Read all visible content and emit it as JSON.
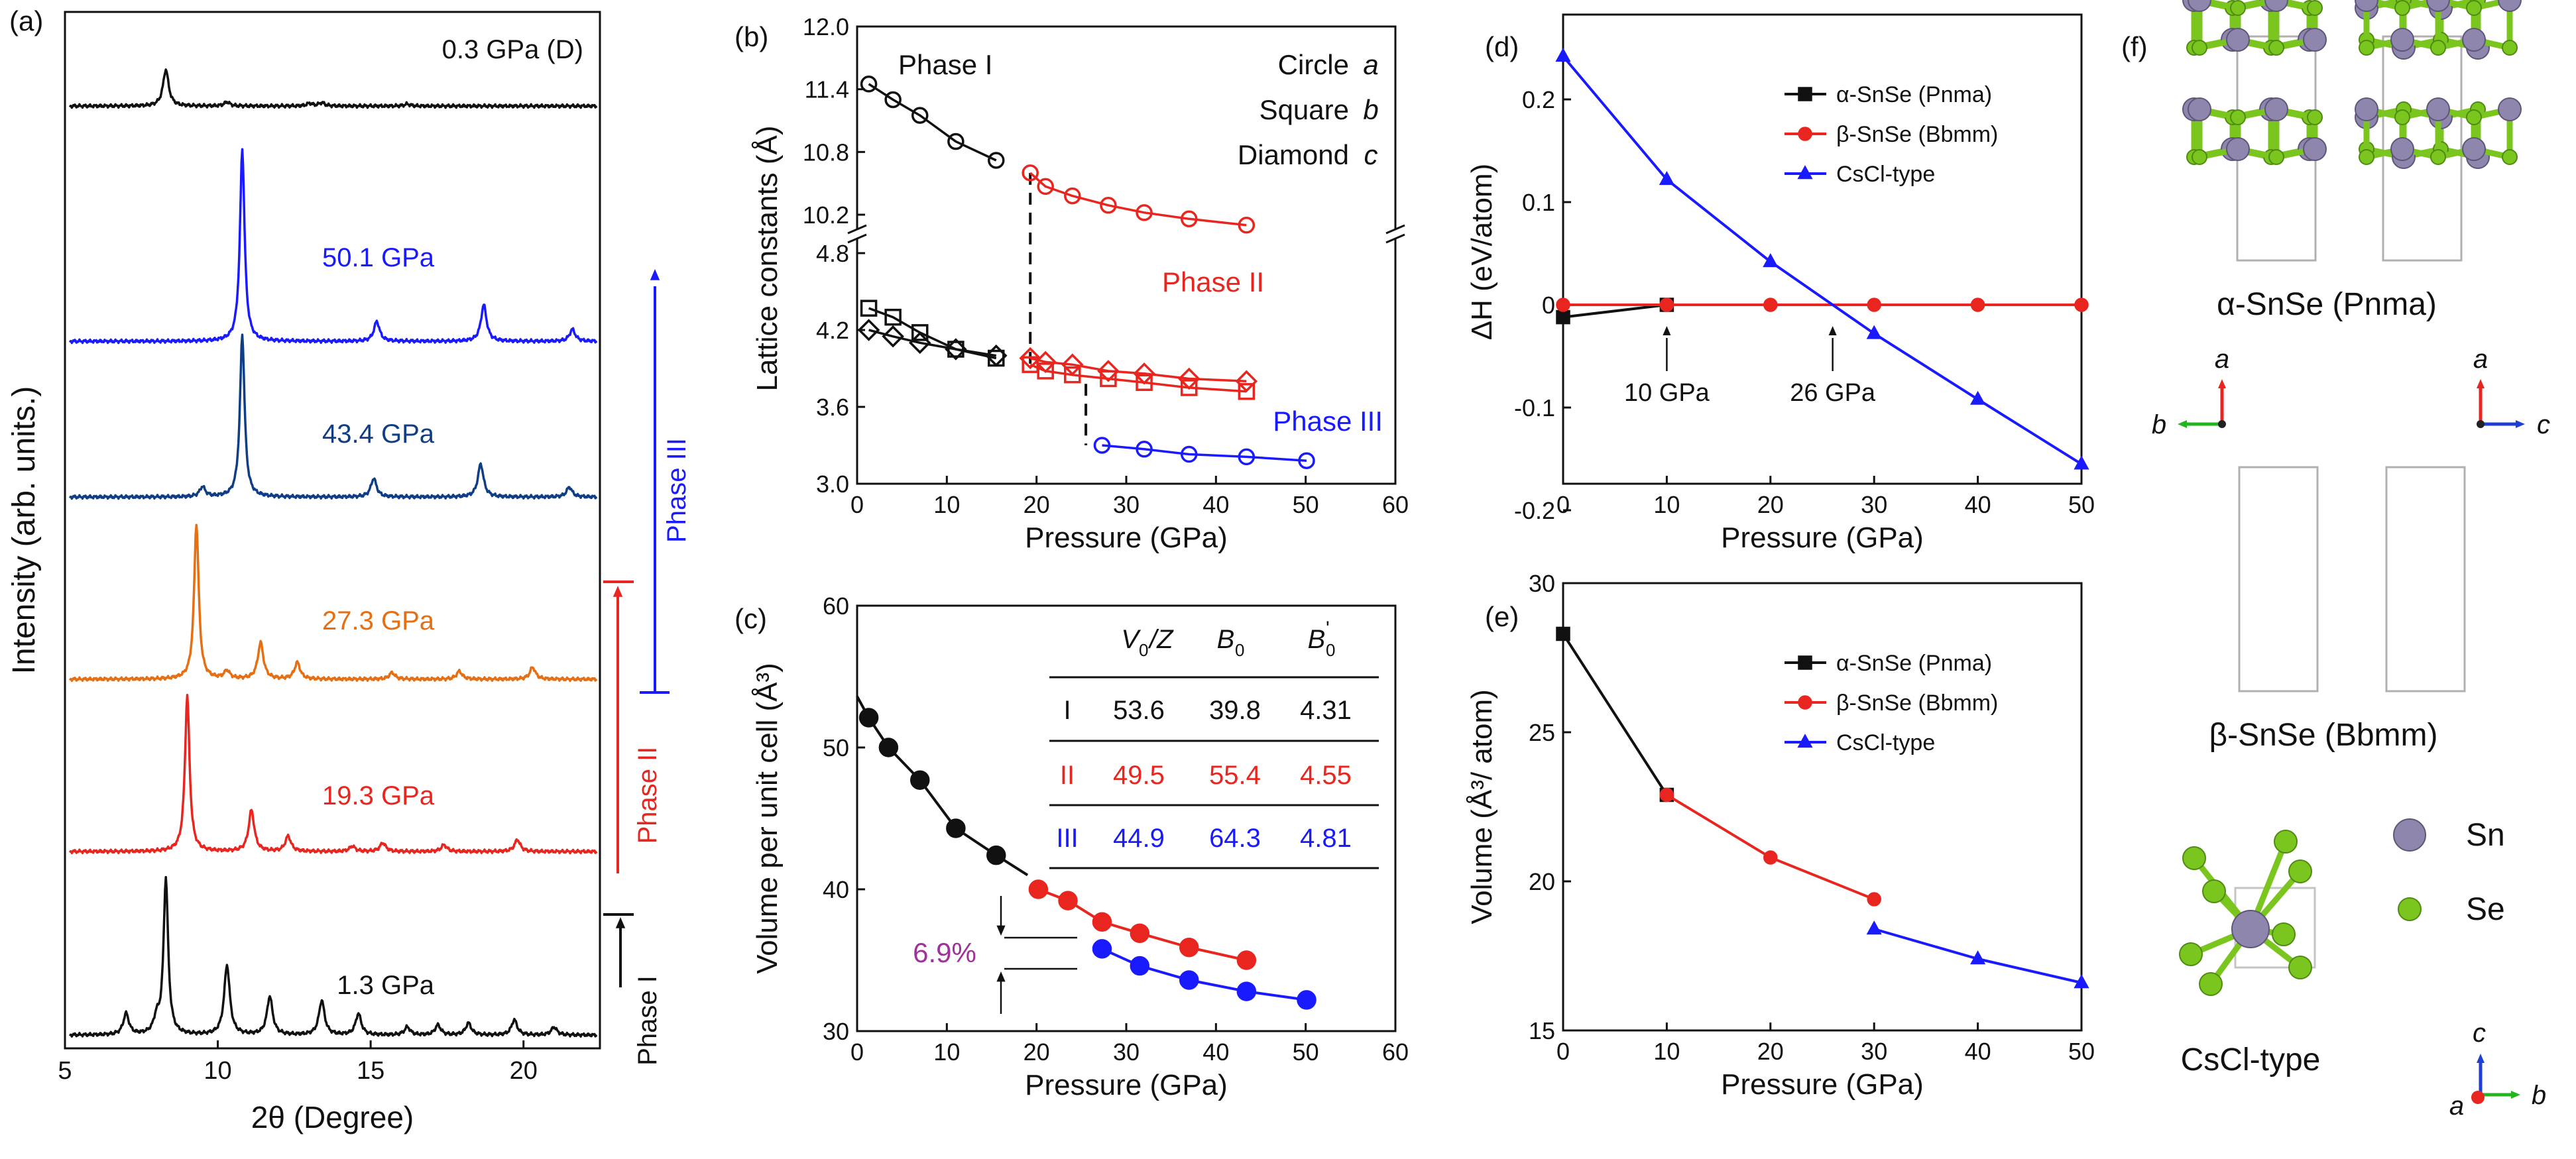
{
  "colors": {
    "black": "#111111",
    "red": "#e8261f",
    "blue": "#1a1aff",
    "navy": "#0f3e86",
    "orange": "#e56f12",
    "purple": "#a0309a",
    "sn": "#8e86ad",
    "se": "#7bc51f",
    "axis_a": "#e8261f",
    "axis_b": "#24b41f",
    "axis_c": "#1f3fd4"
  },
  "chart_data": [
    {
      "id": "a",
      "label": "(a)",
      "type": "line",
      "xlabel": "2θ (Degree)",
      "ylabel": "Intensity (arb. units.)",
      "xlim": [
        5,
        22.5
      ],
      "xticks": [
        5,
        10,
        15,
        20
      ],
      "series": [
        {
          "name": "0.3 GPa (D)",
          "color": "black",
          "peaks": [
            [
              8.3,
              55
            ],
            [
              10.3,
              6
            ],
            [
              13.0,
              4
            ],
            [
              13.4,
              5
            ],
            [
              16.2,
              3
            ]
          ]
        },
        {
          "name": "50.1 GPa",
          "color": "blue",
          "peaks": [
            [
              10.8,
              290
            ],
            [
              15.2,
              30
            ],
            [
              18.7,
              55
            ],
            [
              21.6,
              18
            ]
          ]
        },
        {
          "name": "43.4 GPa",
          "color": "navy",
          "peaks": [
            [
              9.5,
              15
            ],
            [
              10.8,
              245
            ],
            [
              15.1,
              28
            ],
            [
              18.6,
              50
            ],
            [
              21.5,
              15
            ]
          ]
        },
        {
          "name": "27.3 GPa",
          "color": "orange",
          "peaks": [
            [
              9.3,
              235
            ],
            [
              10.3,
              12
            ],
            [
              11.4,
              55
            ],
            [
              12.6,
              25
            ],
            [
              15.7,
              10
            ],
            [
              17.9,
              12
            ],
            [
              20.3,
              18
            ]
          ]
        },
        {
          "name": "19.3 GPa",
          "color": "red",
          "peaks": [
            [
              9.0,
              235
            ],
            [
              11.1,
              62
            ],
            [
              12.3,
              23
            ],
            [
              14.4,
              8
            ],
            [
              15.4,
              13
            ],
            [
              17.4,
              10
            ],
            [
              19.8,
              18
            ]
          ]
        },
        {
          "name": "1.3 GPa",
          "color": "black",
          "peaks": [
            [
              7.0,
              32
            ],
            [
              8.0,
              22
            ],
            [
              8.3,
              235
            ],
            [
              10.3,
              105
            ],
            [
              11.7,
              58
            ],
            [
              13.4,
              52
            ],
            [
              14.6,
              32
            ],
            [
              16.2,
              12
            ],
            [
              17.2,
              15
            ],
            [
              18.2,
              18
            ],
            [
              19.7,
              23
            ],
            [
              21.0,
              12
            ]
          ]
        }
      ],
      "phases": [
        {
          "name": "Phase I",
          "color": "black",
          "p_from": 0,
          "p_to": 1.3
        },
        {
          "name": "Phase II",
          "color": "red",
          "p_from": 1.3,
          "p_to": 43.4
        },
        {
          "name": "Phase III",
          "color": "blue",
          "p_from": 27.3,
          "p_to": 50.1
        }
      ]
    },
    {
      "id": "b",
      "label": "(b)",
      "type": "scatter",
      "xlabel": "Pressure (GPa)",
      "ylabel": "Lattice constants (Å)",
      "xlim": [
        0,
        60
      ],
      "xticks": [
        0,
        10,
        20,
        30,
        40,
        50,
        60
      ],
      "yticks_top": [
        "10.2",
        "10.8",
        "11.4",
        "12.0"
      ],
      "yticks_bottom": [
        "3.0",
        "3.6",
        "4.2",
        "4.8"
      ],
      "legend": [
        {
          "text": "Circle",
          "var": "a"
        },
        {
          "text": "Square",
          "var": "b"
        },
        {
          "text": "Diamond",
          "var": "c"
        }
      ],
      "annotations": [
        "Phase I",
        "Phase II",
        "Phase III"
      ],
      "series": [
        {
          "name": "a Phase I",
          "color": "black",
          "marker": "circle",
          "x": [
            1.3,
            4,
            7,
            11,
            15.5
          ],
          "y": [
            11.45,
            11.3,
            11.15,
            10.9,
            10.72
          ]
        },
        {
          "name": "a Phase II",
          "color": "red",
          "marker": "circle",
          "x": [
            19.3,
            21,
            24,
            28,
            32,
            37,
            43.4
          ],
          "y": [
            10.6,
            10.47,
            10.38,
            10.29,
            10.22,
            10.16,
            10.1
          ]
        },
        {
          "name": "b Phase I",
          "color": "black",
          "marker": "square",
          "x": [
            1.3,
            4,
            7,
            11,
            15.5
          ],
          "y": [
            4.37,
            4.3,
            4.18,
            4.05,
            3.98
          ]
        },
        {
          "name": "b Phase II",
          "color": "red",
          "marker": "square",
          "x": [
            19.3,
            21,
            24,
            28,
            32,
            37,
            43.4
          ],
          "y": [
            3.93,
            3.88,
            3.85,
            3.82,
            3.79,
            3.75,
            3.72
          ]
        },
        {
          "name": "c Phase I",
          "color": "black",
          "marker": "diamond",
          "x": [
            1.3,
            4,
            7,
            11,
            15.5
          ],
          "y": [
            4.2,
            4.15,
            4.1,
            4.05,
            4.0
          ]
        },
        {
          "name": "c Phase II",
          "color": "red",
          "marker": "diamond",
          "x": [
            19.3,
            21,
            24,
            28,
            32,
            37,
            43.4
          ],
          "y": [
            3.98,
            3.95,
            3.93,
            3.88,
            3.86,
            3.82,
            3.8
          ]
        },
        {
          "name": "Phase III",
          "color": "blue",
          "marker": "circle",
          "x": [
            27.3,
            32,
            37,
            43.4,
            50.1
          ],
          "y": [
            3.3,
            3.27,
            3.23,
            3.21,
            3.18
          ]
        }
      ]
    },
    {
      "id": "c",
      "label": "(c)",
      "type": "scatter",
      "xlabel": "Pressure (GPa)",
      "ylabel": "Volume per unit cell (Å³)",
      "xlim": [
        0,
        60
      ],
      "ylim": [
        30,
        60
      ],
      "xticks": [
        0,
        10,
        20,
        30,
        40,
        50,
        60
      ],
      "yticks": [
        30,
        40,
        50,
        60
      ],
      "annotation": "6.9%",
      "table": {
        "headers": [
          "V0/Z",
          "B0",
          "B0'"
        ],
        "rows": [
          {
            "phase": "I",
            "v": "53.6",
            "b": "39.8",
            "bp": "4.31",
            "color": "black"
          },
          {
            "phase": "II",
            "v": "49.5",
            "b": "55.4",
            "bp": "4.55",
            "color": "red"
          },
          {
            "phase": "III",
            "v": "44.9",
            "b": "64.3",
            "bp": "4.81",
            "color": "blue"
          }
        ]
      },
      "series": [
        {
          "name": "Phase I",
          "color": "black",
          "x": [
            1.3,
            3.5,
            7,
            11,
            15.5
          ],
          "y": [
            52.1,
            50.0,
            47.7,
            44.3,
            42.4
          ]
        },
        {
          "name": "Phase II",
          "color": "red",
          "x": [
            20.2,
            23.5,
            27.3,
            31.5,
            37,
            43.4
          ],
          "y": [
            40.0,
            39.2,
            37.7,
            36.9,
            35.9,
            35.0
          ]
        },
        {
          "name": "Phase III",
          "color": "blue",
          "x": [
            27.3,
            31.5,
            37,
            43.4,
            50.1
          ],
          "y": [
            35.8,
            34.6,
            33.6,
            32.8,
            32.2
          ]
        }
      ]
    },
    {
      "id": "d",
      "label": "(d)",
      "type": "line",
      "xlabel": "Pressure (GPa)",
      "ylabel": "ΔH (eV/atom)",
      "xlim": [
        0,
        50
      ],
      "ylim": [
        -0.2,
        0.25
      ],
      "xticks": [
        0,
        10,
        20,
        30,
        40,
        50
      ],
      "yticks": [
        -0.2,
        -0.1,
        0,
        0.1,
        0.2
      ],
      "annotations": [
        "10 GPa",
        "26 GPa"
      ],
      "series": [
        {
          "name": "α-SnSe (Pnma)",
          "color": "black",
          "marker": "square",
          "x": [
            0,
            10
          ],
          "y": [
            -0.012,
            0
          ]
        },
        {
          "name": "β-SnSe (Bbmm)",
          "color": "red",
          "marker": "circle",
          "x": [
            0,
            10,
            20,
            30,
            40,
            50
          ],
          "y": [
            0,
            0,
            0,
            0,
            0,
            0
          ]
        },
        {
          "name": "CsCl-type",
          "color": "blue",
          "marker": "triangle",
          "x": [
            0,
            10,
            20,
            30,
            40,
            50
          ],
          "y": [
            0.242,
            0.122,
            0.042,
            -0.028,
            -0.092,
            -0.155
          ]
        }
      ]
    },
    {
      "id": "e",
      "label": "(e)",
      "type": "line",
      "xlabel": "Pressure (GPa)",
      "ylabel": "Volume (Å³/ atom)",
      "xlim": [
        0,
        50
      ],
      "ylim": [
        15,
        30
      ],
      "xticks": [
        0,
        10,
        20,
        30,
        40,
        50
      ],
      "yticks": [
        15,
        20,
        25,
        30
      ],
      "series": [
        {
          "name": "α-SnSe (Pnma)",
          "color": "black",
          "marker": "square",
          "x": [
            0,
            10
          ],
          "y": [
            28.3,
            22.9
          ]
        },
        {
          "name": "β-SnSe (Bbmm)",
          "color": "red",
          "marker": "circle",
          "x": [
            10,
            20,
            30
          ],
          "y": [
            22.9,
            20.8,
            19.4
          ]
        },
        {
          "name": "CsCl-type",
          "color": "blue",
          "marker": "triangle",
          "x": [
            30,
            40,
            50
          ],
          "y": [
            18.4,
            17.4,
            16.6
          ]
        }
      ]
    }
  ],
  "panel_f": {
    "label": "(f)",
    "alpha": "α-SnSe (Pnma)",
    "beta": "β-SnSe (Bbmm)",
    "cscl": "CsCl-type",
    "legend_sn": "Sn",
    "legend_se": "Se",
    "axis_a": "a",
    "axis_b": "b",
    "axis_c": "c"
  }
}
